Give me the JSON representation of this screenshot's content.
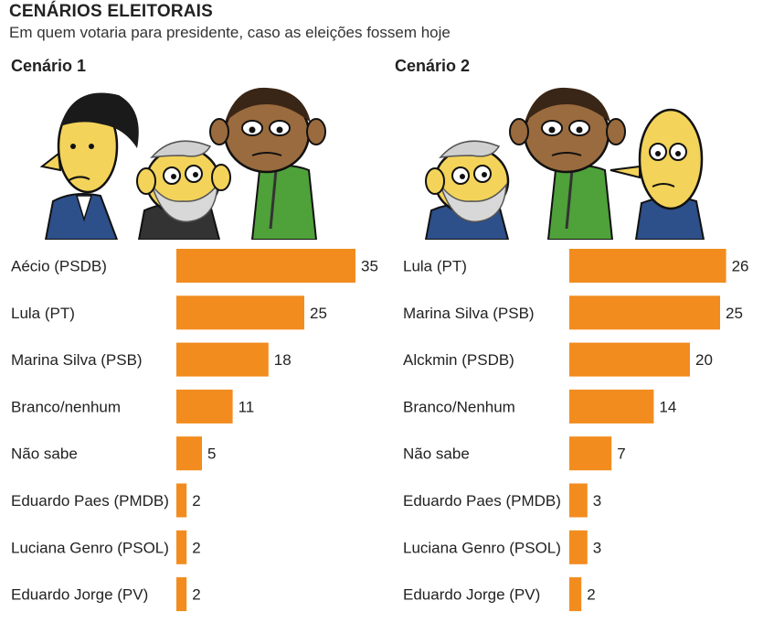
{
  "header": {
    "title": "CENÁRIOS ELEITORAIS",
    "subtitle": "Em quem votaria para presidente, caso as eleições fossem hoje"
  },
  "colors": {
    "bar": "#f28c1e",
    "text": "#222222"
  },
  "illustrations": [
    {
      "scenario": "Cenário 1",
      "icon": "cartoon-candidates-cenario-1"
    },
    {
      "scenario": "Cenário 2",
      "icon": "cartoon-candidates-cenario-2"
    }
  ],
  "chart_data": [
    {
      "type": "bar",
      "orientation": "horizontal",
      "title": "Cenário 1",
      "categories": [
        "Aécio (PSDB)",
        "Lula (PT)",
        "Marina Silva (PSB)",
        "Branco/nenhum",
        "Não sabe",
        "Eduardo Paes (PMDB)",
        "Luciana Genro (PSOL)",
        "Eduardo Jorge (PV)"
      ],
      "values": [
        35,
        25,
        18,
        11,
        5,
        2,
        2,
        2
      ],
      "grid": false
    },
    {
      "type": "bar",
      "orientation": "horizontal",
      "title": "Cenário 2",
      "categories": [
        "Lula (PT)",
        "Marina Silva (PSB)",
        "Alckmin (PSDB)",
        "Branco/Nenhum",
        "Não sabe",
        "Eduardo Paes (PMDB)",
        "Luciana Genro (PSOL)",
        "Eduardo Jorge (PV)"
      ],
      "values": [
        26,
        25,
        20,
        14,
        7,
        3,
        3,
        2
      ],
      "grid": false
    }
  ]
}
